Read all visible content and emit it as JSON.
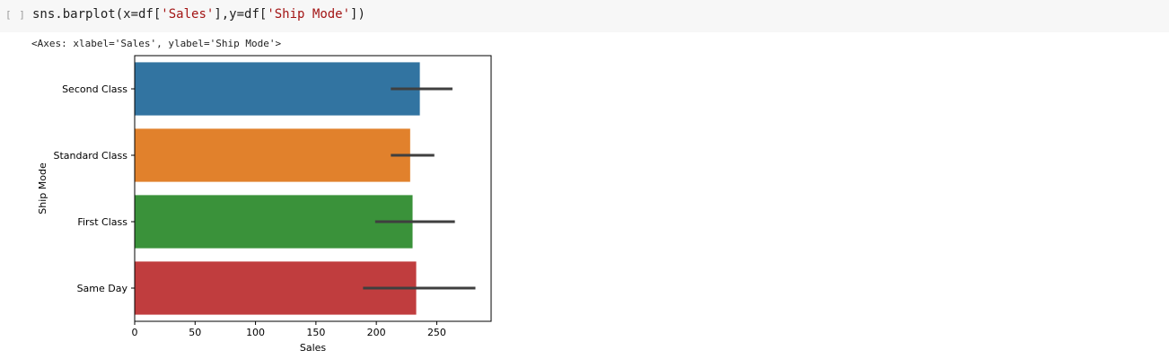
{
  "cell": {
    "exec_count": "[ ]",
    "code_prefix": "sns.barplot(x=df[",
    "code_arg1": "'Sales'",
    "code_mid": "],y=df[",
    "code_arg2": "'Ship Mode'",
    "code_suffix": "])"
  },
  "output": {
    "repr": "<Axes: xlabel='Sales', ylabel='Ship Mode'>"
  },
  "chart_data": {
    "type": "bar",
    "orientation": "horizontal",
    "categories": [
      "Second Class",
      "Standard Class",
      "First Class",
      "Same Day"
    ],
    "values": [
      236,
      228,
      230,
      233
    ],
    "error_bars": [
      [
        212,
        263
      ],
      [
        212,
        248
      ],
      [
        199,
        265
      ],
      [
        189,
        282
      ]
    ],
    "colors": [
      "#3274a1",
      "#e1812c",
      "#3a923a",
      "#c03d3e"
    ],
    "error_color": "#3f3f3f",
    "xlabel": "Sales",
    "ylabel": "Ship Mode",
    "xlim": [
      0,
      295
    ],
    "xticks": [
      0,
      50,
      100,
      150,
      200,
      250
    ],
    "grid": false
  }
}
